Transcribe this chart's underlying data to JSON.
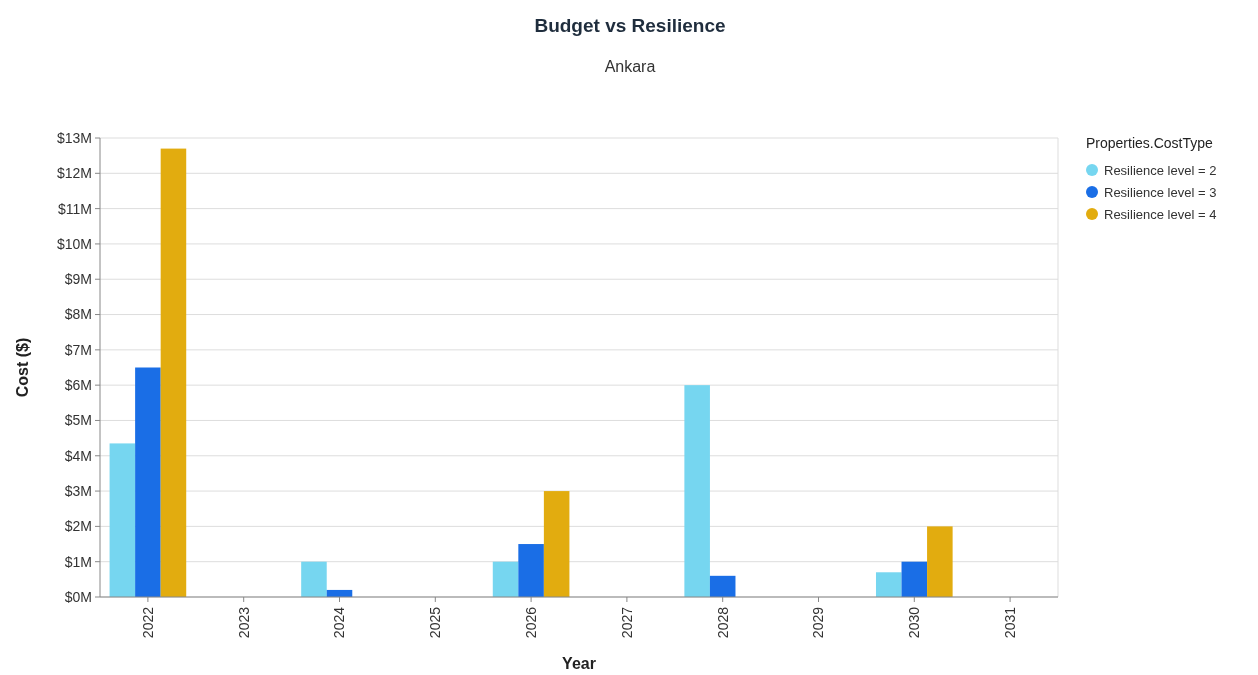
{
  "chart_data": {
    "type": "bar",
    "title": "Budget vs Resilience",
    "subtitle": "Ankara",
    "xlabel": "Year",
    "ylabel": "Cost ($)",
    "legend_title": "Properties.CostType",
    "categories": [
      "2022",
      "2023",
      "2024",
      "2025",
      "2026",
      "2027",
      "2028",
      "2029",
      "2030",
      "2031"
    ],
    "series": [
      {
        "name": "Resilience level = 2",
        "color": "#76d6f0",
        "values": [
          4.35,
          null,
          1.0,
          null,
          1.0,
          null,
          6.0,
          null,
          0.7,
          null
        ]
      },
      {
        "name": "Resilience level = 3",
        "color": "#1a6ee6",
        "values": [
          6.5,
          null,
          0.2,
          null,
          1.5,
          null,
          0.6,
          null,
          1.0,
          null
        ]
      },
      {
        "name": "Resilience level = 4",
        "color": "#e2ac0f",
        "values": [
          12.7,
          null,
          null,
          null,
          3.0,
          null,
          null,
          null,
          2.0,
          null
        ]
      }
    ],
    "ylim": [
      0,
      13
    ],
    "yticks": [
      {
        "value": 0,
        "label": "$0M"
      },
      {
        "value": 1,
        "label": "$1M"
      },
      {
        "value": 2,
        "label": "$2M"
      },
      {
        "value": 3,
        "label": "$3M"
      },
      {
        "value": 4,
        "label": "$4M"
      },
      {
        "value": 5,
        "label": "$5M"
      },
      {
        "value": 6,
        "label": "$6M"
      },
      {
        "value": 7,
        "label": "$7M"
      },
      {
        "value": 8,
        "label": "$8M"
      },
      {
        "value": 9,
        "label": "$9M"
      },
      {
        "value": 10,
        "label": "$10M"
      },
      {
        "value": 11,
        "label": "$11M"
      },
      {
        "value": 12,
        "label": "$12M"
      },
      {
        "value": 13,
        "label": "$13M"
      }
    ],
    "grid": "y",
    "legend": "top right"
  }
}
